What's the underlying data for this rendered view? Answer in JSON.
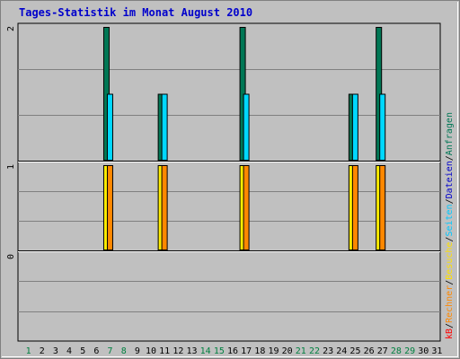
{
  "page": {
    "title": "Tages-Statistik im Monat August 2010"
  },
  "legend": {
    "items": [
      {
        "label": "Anfragen",
        "color": "#007755"
      },
      {
        "label": "/",
        "color": "#000000"
      },
      {
        "label": "Dateien",
        "color": "#0000cc"
      },
      {
        "label": "/",
        "color": "#000000"
      },
      {
        "label": "Seiten",
        "color": "#00c8ff"
      },
      {
        "label": "/",
        "color": "#000000"
      },
      {
        "label": "Besuche",
        "color": "#ffe000"
      },
      {
        "label": "/",
        "color": "#000000"
      },
      {
        "label": "Rechner",
        "color": "#ff8800"
      },
      {
        "label": "/",
        "color": "#000000"
      },
      {
        "label": "kB",
        "color": "#ff0000"
      }
    ]
  },
  "chart_data": [
    {
      "type": "bar",
      "panel": "upper",
      "categories": [
        "1",
        "2",
        "3",
        "4",
        "5",
        "6",
        "7",
        "8",
        "9",
        "10",
        "11",
        "12",
        "13",
        "14",
        "15",
        "16",
        "17",
        "18",
        "19",
        "20",
        "21",
        "22",
        "23",
        "24",
        "25",
        "26",
        "27",
        "28",
        "29",
        "30",
        "31"
      ],
      "ylim": [
        0,
        2
      ],
      "ytick_labels": [
        "2",
        "1"
      ],
      "series": [
        {
          "name": "Anfragen",
          "color": "#007755",
          "values": [
            0,
            0,
            0,
            0,
            0,
            0,
            2,
            0,
            0,
            0,
            1,
            0,
            0,
            0,
            0,
            0,
            2,
            0,
            0,
            0,
            0,
            0,
            0,
            0,
            1,
            0,
            2,
            0,
            0,
            0,
            0
          ]
        },
        {
          "name": "Seiten",
          "color": "#00d8ff",
          "values": [
            0,
            0,
            0,
            0,
            0,
            0,
            1,
            0,
            0,
            0,
            1,
            0,
            0,
            0,
            0,
            0,
            1,
            0,
            0,
            0,
            0,
            0,
            0,
            0,
            1,
            0,
            1,
            0,
            0,
            0,
            0
          ]
        }
      ]
    },
    {
      "type": "bar",
      "panel": "middle",
      "categories": [
        "1",
        "2",
        "3",
        "4",
        "5",
        "6",
        "7",
        "8",
        "9",
        "10",
        "11",
        "12",
        "13",
        "14",
        "15",
        "16",
        "17",
        "18",
        "19",
        "20",
        "21",
        "22",
        "23",
        "24",
        "25",
        "26",
        "27",
        "28",
        "29",
        "30",
        "31"
      ],
      "ylim": [
        0,
        1
      ],
      "ytick_labels": [
        "1"
      ],
      "series": [
        {
          "name": "Besuche",
          "color": "#ffee00",
          "values": [
            0,
            0,
            0,
            0,
            0,
            0,
            1,
            0,
            0,
            0,
            1,
            0,
            0,
            0,
            0,
            0,
            1,
            0,
            0,
            0,
            0,
            0,
            0,
            0,
            1,
            0,
            1,
            0,
            0,
            0,
            0
          ]
        },
        {
          "name": "Rechner",
          "color": "#ff8800",
          "values": [
            0,
            0,
            0,
            0,
            0,
            0,
            1,
            0,
            0,
            0,
            1,
            0,
            0,
            0,
            0,
            0,
            1,
            0,
            0,
            0,
            0,
            0,
            0,
            0,
            1,
            0,
            1,
            0,
            0,
            0,
            0
          ]
        }
      ]
    },
    {
      "type": "bar",
      "panel": "lower",
      "ylim": [
        0,
        1
      ],
      "ytick_labels": [
        "0"
      ],
      "series": [
        {
          "name": "kB",
          "color": "#ff0000",
          "values": [
            0,
            0,
            0,
            0,
            0,
            0,
            0,
            0,
            0,
            0,
            0,
            0,
            0,
            0,
            0,
            0,
            0,
            0,
            0,
            0,
            0,
            0,
            0,
            0,
            0,
            0,
            0,
            0,
            0,
            0,
            0
          ]
        }
      ]
    }
  ],
  "x_axis": {
    "labels": [
      "1",
      "2",
      "3",
      "4",
      "5",
      "6",
      "7",
      "8",
      "9",
      "10",
      "11",
      "12",
      "13",
      "14",
      "15",
      "16",
      "17",
      "18",
      "19",
      "20",
      "21",
      "22",
      "23",
      "24",
      "25",
      "26",
      "27",
      "28",
      "29",
      "30",
      "31"
    ],
    "weekend_color": "#008040",
    "weekday_color": "#000000",
    "weekend_days": [
      1,
      7,
      8,
      14,
      15,
      21,
      22,
      28,
      29
    ]
  }
}
